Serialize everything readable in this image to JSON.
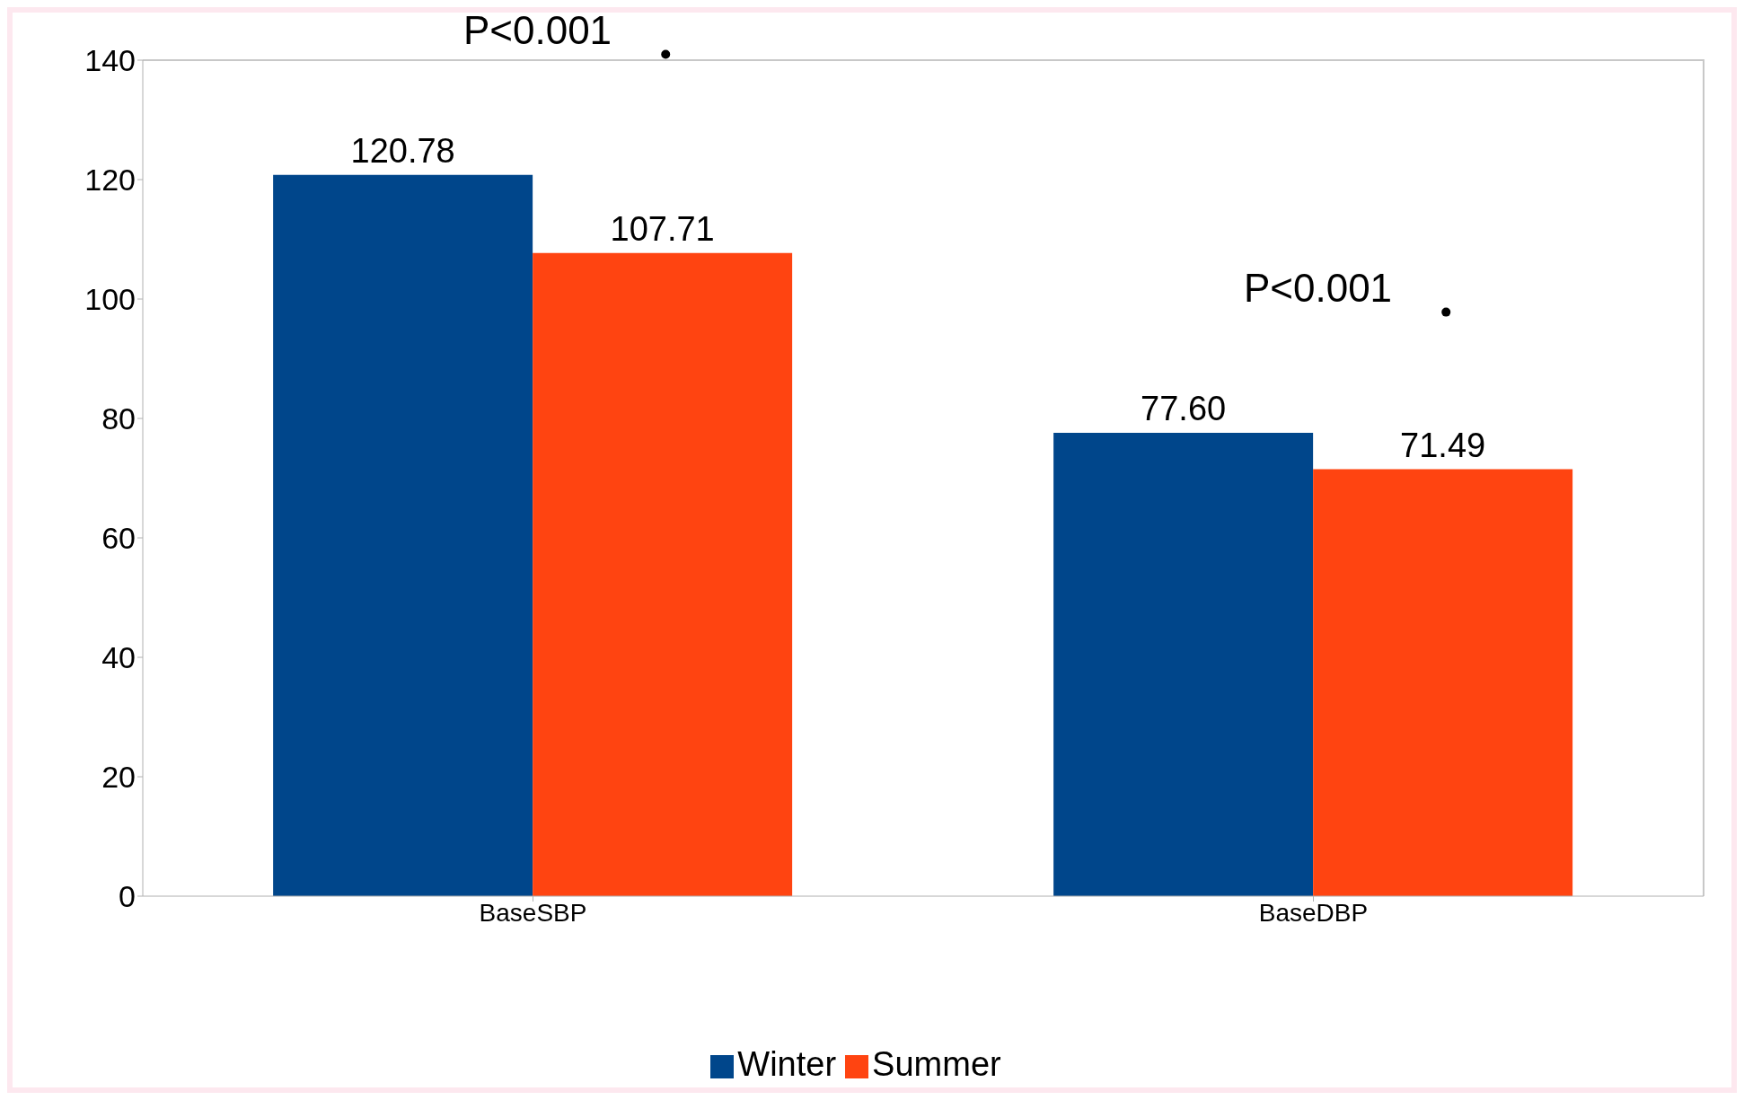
{
  "chart_data": {
    "type": "bar",
    "categories": [
      "BaseSBP",
      "BaseDBP"
    ],
    "series": [
      {
        "name": "Winter",
        "color": "#00468b",
        "values": [
          120.78,
          77.6
        ]
      },
      {
        "name": "Summer",
        "color": "#ff4411",
        "values": [
          107.71,
          71.49
        ]
      }
    ],
    "value_labels": [
      [
        "120.78",
        "77.60"
      ],
      [
        "107.71",
        "71.49"
      ]
    ],
    "ylim": [
      0,
      140
    ],
    "yticks": [
      0,
      20,
      40,
      60,
      80,
      100,
      120,
      140
    ],
    "annotations": [
      "P<0.001",
      "P<0.001"
    ],
    "legend": "bottom"
  }
}
